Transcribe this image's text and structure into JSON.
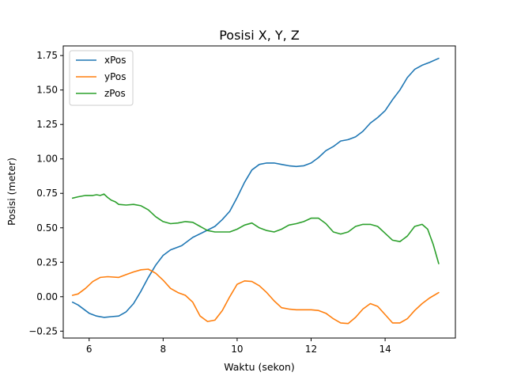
{
  "chart_data": {
    "type": "line",
    "title": "Posisi X, Y, Z",
    "xlabel": "Waktu (sekon)",
    "ylabel": "Posisi (meter)",
    "xlim": [
      5.3,
      15.9
    ],
    "ylim": [
      -0.3,
      1.82
    ],
    "xticks": [
      6,
      8,
      10,
      12,
      14
    ],
    "xtick_labels": [
      "6",
      "8",
      "10",
      "12",
      "14"
    ],
    "yticks": [
      -0.25,
      0.0,
      0.25,
      0.5,
      0.75,
      1.0,
      1.25,
      1.5,
      1.75
    ],
    "ytick_labels": [
      "−0.25",
      "0.00",
      "0.25",
      "0.50",
      "0.75",
      "1.00",
      "1.25",
      "1.50",
      "1.75"
    ],
    "grid": false,
    "legend_position": "top-left",
    "series": [
      {
        "name": "xPos",
        "color": "#1f77b4",
        "points": [
          [
            5.55,
            -0.04
          ],
          [
            5.7,
            -0.06
          ],
          [
            6.0,
            -0.12
          ],
          [
            6.2,
            -0.14
          ],
          [
            6.4,
            -0.15
          ],
          [
            6.6,
            -0.145
          ],
          [
            6.8,
            -0.14
          ],
          [
            7.0,
            -0.11
          ],
          [
            7.2,
            -0.05
          ],
          [
            7.4,
            0.04
          ],
          [
            7.6,
            0.14
          ],
          [
            7.8,
            0.23
          ],
          [
            8.0,
            0.3
          ],
          [
            8.2,
            0.34
          ],
          [
            8.5,
            0.37
          ],
          [
            8.8,
            0.43
          ],
          [
            9.1,
            0.47
          ],
          [
            9.4,
            0.51
          ],
          [
            9.6,
            0.56
          ],
          [
            9.8,
            0.62
          ],
          [
            10.0,
            0.72
          ],
          [
            10.2,
            0.83
          ],
          [
            10.4,
            0.92
          ],
          [
            10.6,
            0.96
          ],
          [
            10.8,
            0.97
          ],
          [
            11.0,
            0.97
          ],
          [
            11.2,
            0.96
          ],
          [
            11.4,
            0.95
          ],
          [
            11.6,
            0.945
          ],
          [
            11.8,
            0.95
          ],
          [
            12.0,
            0.97
          ],
          [
            12.2,
            1.01
          ],
          [
            12.4,
            1.06
          ],
          [
            12.6,
            1.09
          ],
          [
            12.8,
            1.13
          ],
          [
            13.0,
            1.14
          ],
          [
            13.2,
            1.16
          ],
          [
            13.4,
            1.2
          ],
          [
            13.6,
            1.26
          ],
          [
            13.8,
            1.3
          ],
          [
            14.0,
            1.35
          ],
          [
            14.2,
            1.43
          ],
          [
            14.4,
            1.5
          ],
          [
            14.6,
            1.59
          ],
          [
            14.8,
            1.65
          ],
          [
            15.0,
            1.68
          ],
          [
            15.2,
            1.7
          ],
          [
            15.45,
            1.73
          ]
        ]
      },
      {
        "name": "yPos",
        "color": "#ff7f0e",
        "points": [
          [
            5.55,
            0.01
          ],
          [
            5.7,
            0.02
          ],
          [
            5.9,
            0.06
          ],
          [
            6.1,
            0.11
          ],
          [
            6.3,
            0.14
          ],
          [
            6.5,
            0.145
          ],
          [
            6.8,
            0.14
          ],
          [
            7.0,
            0.16
          ],
          [
            7.2,
            0.18
          ],
          [
            7.4,
            0.195
          ],
          [
            7.6,
            0.2
          ],
          [
            7.8,
            0.17
          ],
          [
            8.0,
            0.12
          ],
          [
            8.2,
            0.06
          ],
          [
            8.4,
            0.03
          ],
          [
            8.6,
            0.01
          ],
          [
            8.8,
            -0.04
          ],
          [
            9.0,
            -0.14
          ],
          [
            9.2,
            -0.18
          ],
          [
            9.4,
            -0.17
          ],
          [
            9.6,
            -0.1
          ],
          [
            9.8,
            0.0
          ],
          [
            10.0,
            0.09
          ],
          [
            10.2,
            0.115
          ],
          [
            10.4,
            0.11
          ],
          [
            10.6,
            0.08
          ],
          [
            10.8,
            0.03
          ],
          [
            11.0,
            -0.03
          ],
          [
            11.2,
            -0.08
          ],
          [
            11.4,
            -0.09
          ],
          [
            11.6,
            -0.095
          ],
          [
            11.8,
            -0.095
          ],
          [
            12.0,
            -0.095
          ],
          [
            12.2,
            -0.1
          ],
          [
            12.4,
            -0.12
          ],
          [
            12.6,
            -0.16
          ],
          [
            12.8,
            -0.19
          ],
          [
            13.0,
            -0.195
          ],
          [
            13.2,
            -0.15
          ],
          [
            13.4,
            -0.09
          ],
          [
            13.6,
            -0.05
          ],
          [
            13.8,
            -0.07
          ],
          [
            14.0,
            -0.13
          ],
          [
            14.2,
            -0.19
          ],
          [
            14.4,
            -0.19
          ],
          [
            14.6,
            -0.16
          ],
          [
            14.8,
            -0.1
          ],
          [
            15.0,
            -0.05
          ],
          [
            15.2,
            -0.01
          ],
          [
            15.45,
            0.03
          ]
        ]
      },
      {
        "name": "zPos",
        "color": "#2ca02c",
        "points": [
          [
            5.55,
            0.715
          ],
          [
            5.7,
            0.725
          ],
          [
            5.9,
            0.735
          ],
          [
            6.1,
            0.735
          ],
          [
            6.2,
            0.74
          ],
          [
            6.3,
            0.735
          ],
          [
            6.4,
            0.745
          ],
          [
            6.5,
            0.72
          ],
          [
            6.6,
            0.7
          ],
          [
            6.7,
            0.69
          ],
          [
            6.8,
            0.67
          ],
          [
            7.0,
            0.665
          ],
          [
            7.2,
            0.67
          ],
          [
            7.4,
            0.66
          ],
          [
            7.6,
            0.63
          ],
          [
            7.8,
            0.58
          ],
          [
            8.0,
            0.545
          ],
          [
            8.2,
            0.53
          ],
          [
            8.4,
            0.535
          ],
          [
            8.6,
            0.545
          ],
          [
            8.8,
            0.54
          ],
          [
            9.0,
            0.51
          ],
          [
            9.2,
            0.48
          ],
          [
            9.4,
            0.47
          ],
          [
            9.6,
            0.47
          ],
          [
            9.8,
            0.47
          ],
          [
            10.0,
            0.49
          ],
          [
            10.2,
            0.52
          ],
          [
            10.4,
            0.535
          ],
          [
            10.6,
            0.5
          ],
          [
            10.8,
            0.48
          ],
          [
            11.0,
            0.47
          ],
          [
            11.2,
            0.49
          ],
          [
            11.4,
            0.52
          ],
          [
            11.6,
            0.53
          ],
          [
            11.8,
            0.545
          ],
          [
            12.0,
            0.57
          ],
          [
            12.2,
            0.57
          ],
          [
            12.4,
            0.53
          ],
          [
            12.6,
            0.47
          ],
          [
            12.8,
            0.455
          ],
          [
            13.0,
            0.47
          ],
          [
            13.2,
            0.51
          ],
          [
            13.4,
            0.525
          ],
          [
            13.6,
            0.525
          ],
          [
            13.8,
            0.51
          ],
          [
            14.0,
            0.46
          ],
          [
            14.2,
            0.41
          ],
          [
            14.4,
            0.4
          ],
          [
            14.6,
            0.44
          ],
          [
            14.8,
            0.51
          ],
          [
            15.0,
            0.525
          ],
          [
            15.15,
            0.49
          ],
          [
            15.3,
            0.38
          ],
          [
            15.45,
            0.24
          ]
        ]
      }
    ]
  }
}
